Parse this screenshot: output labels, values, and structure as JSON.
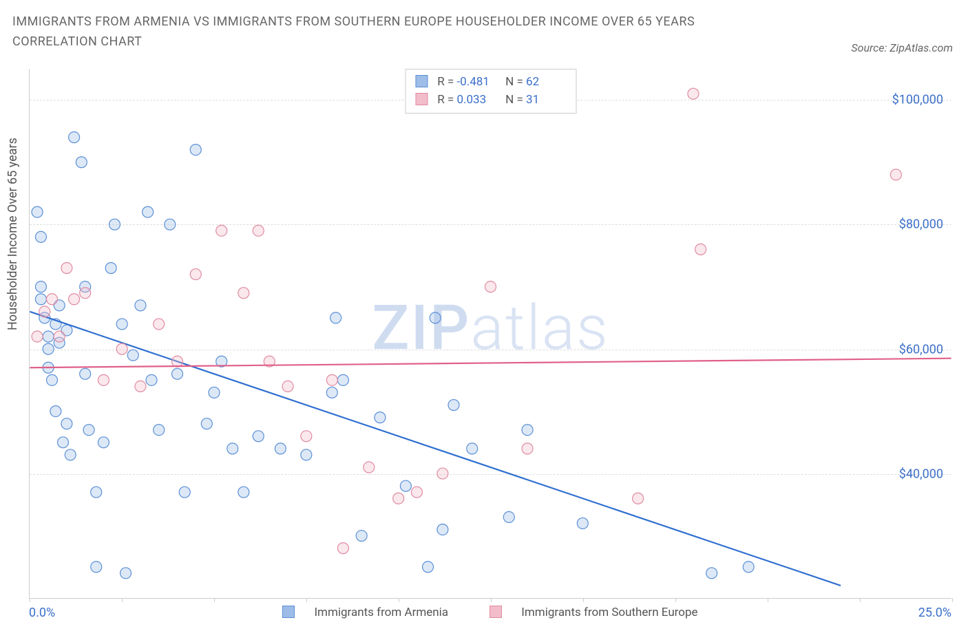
{
  "title": "IMMIGRANTS FROM ARMENIA VS IMMIGRANTS FROM SOUTHERN EUROPE HOUSEHOLDER INCOME OVER 65 YEARS CORRELATION CHART",
  "source_label": "Source: ZipAtlas.com",
  "watermark": {
    "bold": "ZIP",
    "light": "atlas"
  },
  "chart": {
    "type": "scatter",
    "background_color": "#ffffff",
    "grid_color": "#dddddd",
    "axis_color": "#cccccc",
    "ylabel": "Householder Income Over 65 years",
    "ylabel_color": "#555555",
    "ylabel_fontsize": 18,
    "label_fontsize": 18,
    "tick_label_color": "#3b6fc9",
    "xlim": [
      0,
      25
    ],
    "ylim": [
      20000,
      105000
    ],
    "xtick_positions": [
      0,
      2.5,
      5,
      7.5,
      10,
      12.5,
      15,
      17.5,
      20,
      22.5,
      25
    ],
    "xtick_labels": {
      "min": "0.0%",
      "max": "25.0%"
    },
    "ytick_positions": [
      40000,
      60000,
      80000,
      100000
    ],
    "ytick_labels": [
      "$40,000",
      "$60,000",
      "$80,000",
      "$100,000"
    ],
    "marker_radius": 8,
    "marker_stroke_width": 1.2,
    "marker_fill_opacity": 0.35,
    "line_width": 2.2,
    "series": [
      {
        "key": "armenia",
        "label": "Immigrants from Armenia",
        "color_stroke": "#5a8fd6",
        "color_fill": "#9dbde8",
        "line_color": "#2f6fd0",
        "stats": {
          "R_label": "R =",
          "R": "-0.481",
          "N_label": "N =",
          "N": "62"
        },
        "regression": {
          "x1": 0,
          "y1": 66000,
          "x2": 22,
          "y2": 22000,
          "dashed_tail": true
        },
        "points": [
          [
            0.2,
            82000
          ],
          [
            0.3,
            78000
          ],
          [
            0.3,
            70000
          ],
          [
            0.3,
            68000
          ],
          [
            0.4,
            65000
          ],
          [
            0.5,
            62000
          ],
          [
            0.5,
            60000
          ],
          [
            0.5,
            57000
          ],
          [
            0.6,
            55000
          ],
          [
            0.7,
            64000
          ],
          [
            0.7,
            50000
          ],
          [
            0.8,
            67000
          ],
          [
            0.8,
            61000
          ],
          [
            0.9,
            45000
          ],
          [
            1.0,
            63000
          ],
          [
            1.0,
            48000
          ],
          [
            1.1,
            43000
          ],
          [
            1.2,
            94000
          ],
          [
            1.4,
            90000
          ],
          [
            1.5,
            70000
          ],
          [
            1.5,
            56000
          ],
          [
            1.6,
            47000
          ],
          [
            1.8,
            37000
          ],
          [
            1.8,
            25000
          ],
          [
            2.0,
            45000
          ],
          [
            2.2,
            73000
          ],
          [
            2.3,
            80000
          ],
          [
            2.5,
            64000
          ],
          [
            2.6,
            24000
          ],
          [
            2.8,
            59000
          ],
          [
            3.0,
            67000
          ],
          [
            3.2,
            82000
          ],
          [
            3.3,
            55000
          ],
          [
            3.5,
            47000
          ],
          [
            3.8,
            80000
          ],
          [
            4.0,
            56000
          ],
          [
            4.2,
            37000
          ],
          [
            4.5,
            92000
          ],
          [
            4.8,
            48000
          ],
          [
            5.0,
            53000
          ],
          [
            5.2,
            58000
          ],
          [
            5.5,
            44000
          ],
          [
            5.8,
            37000
          ],
          [
            6.2,
            46000
          ],
          [
            6.8,
            44000
          ],
          [
            7.5,
            43000
          ],
          [
            8.2,
            53000
          ],
          [
            8.3,
            65000
          ],
          [
            8.5,
            55000
          ],
          [
            9.0,
            30000
          ],
          [
            9.5,
            49000
          ],
          [
            10.2,
            38000
          ],
          [
            10.8,
            25000
          ],
          [
            11.0,
            65000
          ],
          [
            11.2,
            31000
          ],
          [
            11.5,
            51000
          ],
          [
            12.0,
            44000
          ],
          [
            13.0,
            33000
          ],
          [
            13.5,
            47000
          ],
          [
            15.0,
            32000
          ],
          [
            18.5,
            24000
          ],
          [
            19.5,
            25000
          ]
        ]
      },
      {
        "key": "seurope",
        "label": "Immigrants from Southern Europe",
        "color_stroke": "#e08aa0",
        "color_fill": "#f2bccb",
        "line_color": "#e06088",
        "stats": {
          "R_label": "R =",
          "R": "0.033",
          "N_label": "N =",
          "N": "31"
        },
        "regression": {
          "x1": 0,
          "y1": 57000,
          "x2": 25,
          "y2": 58500,
          "dashed_tail": false
        },
        "points": [
          [
            0.2,
            62000
          ],
          [
            0.4,
            66000
          ],
          [
            0.6,
            68000
          ],
          [
            0.8,
            62000
          ],
          [
            1.0,
            73000
          ],
          [
            1.2,
            68000
          ],
          [
            1.5,
            69000
          ],
          [
            2.0,
            55000
          ],
          [
            2.5,
            60000
          ],
          [
            3.0,
            54000
          ],
          [
            3.5,
            64000
          ],
          [
            4.0,
            58000
          ],
          [
            4.5,
            72000
          ],
          [
            5.2,
            79000
          ],
          [
            5.8,
            69000
          ],
          [
            6.2,
            79000
          ],
          [
            6.5,
            58000
          ],
          [
            7.0,
            54000
          ],
          [
            7.5,
            46000
          ],
          [
            8.2,
            55000
          ],
          [
            8.5,
            28000
          ],
          [
            9.2,
            41000
          ],
          [
            10.0,
            36000
          ],
          [
            10.5,
            37000
          ],
          [
            11.2,
            40000
          ],
          [
            12.5,
            70000
          ],
          [
            13.5,
            44000
          ],
          [
            16.5,
            36000
          ],
          [
            18.0,
            101000
          ],
          [
            18.2,
            76000
          ],
          [
            23.5,
            88000
          ]
        ]
      }
    ]
  }
}
